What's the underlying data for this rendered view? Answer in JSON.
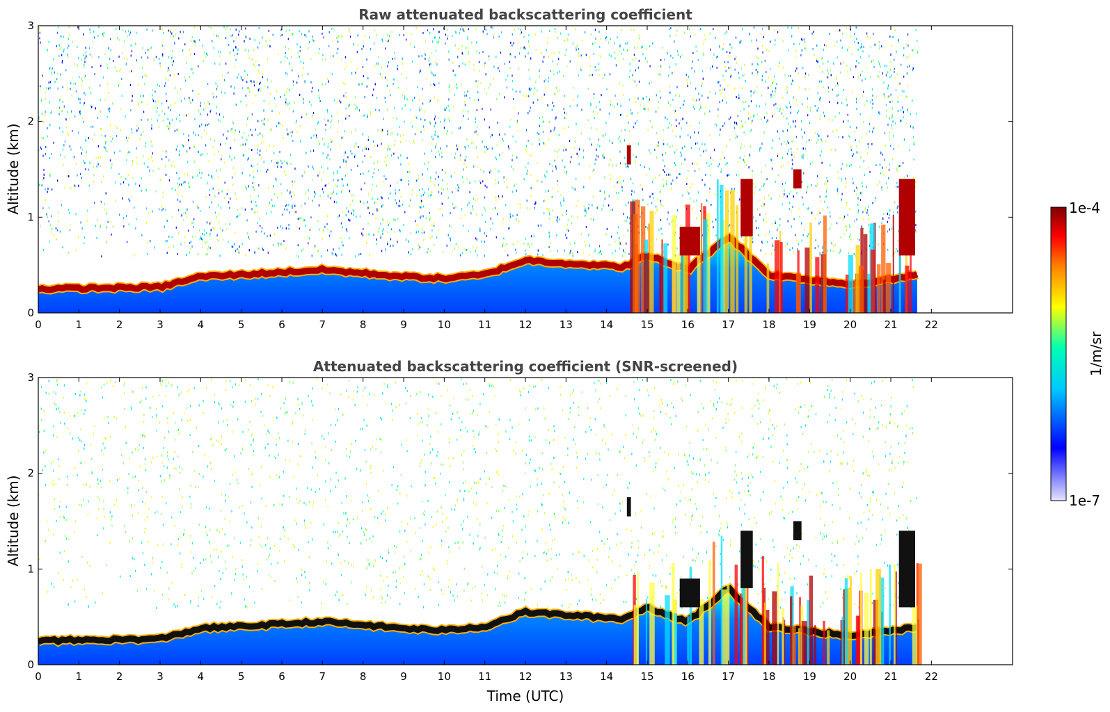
{
  "chart_data": [
    {
      "type": "heatmap",
      "title": "Raw attenuated backscattering coefficient",
      "xlabel": "",
      "ylabel": "Altitude (km)",
      "xlim": [
        0,
        24
      ],
      "ylim": [
        0,
        3
      ],
      "xticks": [
        "0",
        "1",
        "2",
        "3",
        "4",
        "5",
        "6",
        "7",
        "8",
        "9",
        "10",
        "11",
        "12",
        "13",
        "14",
        "15",
        "16",
        "17",
        "18",
        "19",
        "20",
        "21",
        "22"
      ],
      "yticks": [
        "0",
        "1",
        "2",
        "3"
      ],
      "data_end_hour": 21.65,
      "noise_density": 0.6,
      "boundary_layer_top_km": [
        {
          "t": 0,
          "h": 0.25
        },
        {
          "t": 3,
          "h": 0.27
        },
        {
          "t": 4,
          "h": 0.38
        },
        {
          "t": 5,
          "h": 0.4
        },
        {
          "t": 7,
          "h": 0.45
        },
        {
          "t": 9,
          "h": 0.38
        },
        {
          "t": 10,
          "h": 0.36
        },
        {
          "t": 11,
          "h": 0.4
        },
        {
          "t": 12,
          "h": 0.55
        },
        {
          "t": 13,
          "h": 0.52
        },
        {
          "t": 14.4,
          "h": 0.48
        },
        {
          "t": 15,
          "h": 0.6
        },
        {
          "t": 16,
          "h": 0.45
        },
        {
          "t": 17,
          "h": 0.8
        },
        {
          "t": 18,
          "h": 0.4
        },
        {
          "t": 19,
          "h": 0.35
        },
        {
          "t": 20,
          "h": 0.3
        },
        {
          "t": 21,
          "h": 0.35
        },
        {
          "t": 21.65,
          "h": 0.4
        }
      ],
      "cloud_features": [
        {
          "t0": 14.5,
          "t1": 14.6,
          "h0": 1.55,
          "h1": 1.75
        },
        {
          "t0": 15.8,
          "t1": 16.3,
          "h0": 0.6,
          "h1": 0.9
        },
        {
          "t0": 17.3,
          "t1": 17.6,
          "h0": 0.8,
          "h1": 1.4
        },
        {
          "t0": 18.6,
          "t1": 18.8,
          "h0": 1.3,
          "h1": 1.5
        },
        {
          "t0": 21.2,
          "t1": 21.6,
          "h0": 0.6,
          "h1": 1.4
        }
      ]
    },
    {
      "type": "heatmap",
      "title": "Attenuated backscattering coefficient (SNR-screened)",
      "xlabel": "Time (UTC)",
      "ylabel": "Altitude (km)",
      "xlim": [
        0,
        24
      ],
      "ylim": [
        0,
        3
      ],
      "xticks": [
        "0",
        "1",
        "2",
        "3",
        "4",
        "5",
        "6",
        "7",
        "8",
        "9",
        "10",
        "11",
        "12",
        "13",
        "14",
        "15",
        "16",
        "17",
        "18",
        "19",
        "20",
        "21",
        "22"
      ],
      "yticks": [
        "0",
        "1",
        "2",
        "3"
      ],
      "data_end_hour": 21.65,
      "noise_density": 0.28,
      "boundary_layer_top_km": [
        {
          "t": 0,
          "h": 0.25
        },
        {
          "t": 3,
          "h": 0.27
        },
        {
          "t": 4,
          "h": 0.38
        },
        {
          "t": 5,
          "h": 0.4
        },
        {
          "t": 7,
          "h": 0.45
        },
        {
          "t": 9,
          "h": 0.38
        },
        {
          "t": 10,
          "h": 0.36
        },
        {
          "t": 11,
          "h": 0.4
        },
        {
          "t": 12,
          "h": 0.55
        },
        {
          "t": 13,
          "h": 0.52
        },
        {
          "t": 14.4,
          "h": 0.48
        },
        {
          "t": 15,
          "h": 0.6
        },
        {
          "t": 16,
          "h": 0.45
        },
        {
          "t": 17,
          "h": 0.8
        },
        {
          "t": 18,
          "h": 0.4
        },
        {
          "t": 19,
          "h": 0.35
        },
        {
          "t": 20,
          "h": 0.3
        },
        {
          "t": 21,
          "h": 0.35
        },
        {
          "t": 21.65,
          "h": 0.4
        }
      ],
      "cloud_features": [
        {
          "t0": 14.5,
          "t1": 14.6,
          "h0": 1.55,
          "h1": 1.75
        },
        {
          "t0": 15.8,
          "t1": 16.3,
          "h0": 0.6,
          "h1": 0.9
        },
        {
          "t0": 17.3,
          "t1": 17.6,
          "h0": 0.8,
          "h1": 1.4
        },
        {
          "t0": 18.6,
          "t1": 18.8,
          "h0": 1.3,
          "h1": 1.5
        },
        {
          "t0": 21.2,
          "t1": 21.6,
          "h0": 0.6,
          "h1": 1.4
        }
      ]
    }
  ],
  "colorbar": {
    "label": "1/m/sr",
    "min_label": "1e-7",
    "max_label": "1e-4",
    "scale": "log",
    "colors": [
      "#e6e6ff",
      "#0000ff",
      "#00c8ff",
      "#00ffb4",
      "#ffff00",
      "#ff8000",
      "#ff0000",
      "#800000"
    ]
  }
}
